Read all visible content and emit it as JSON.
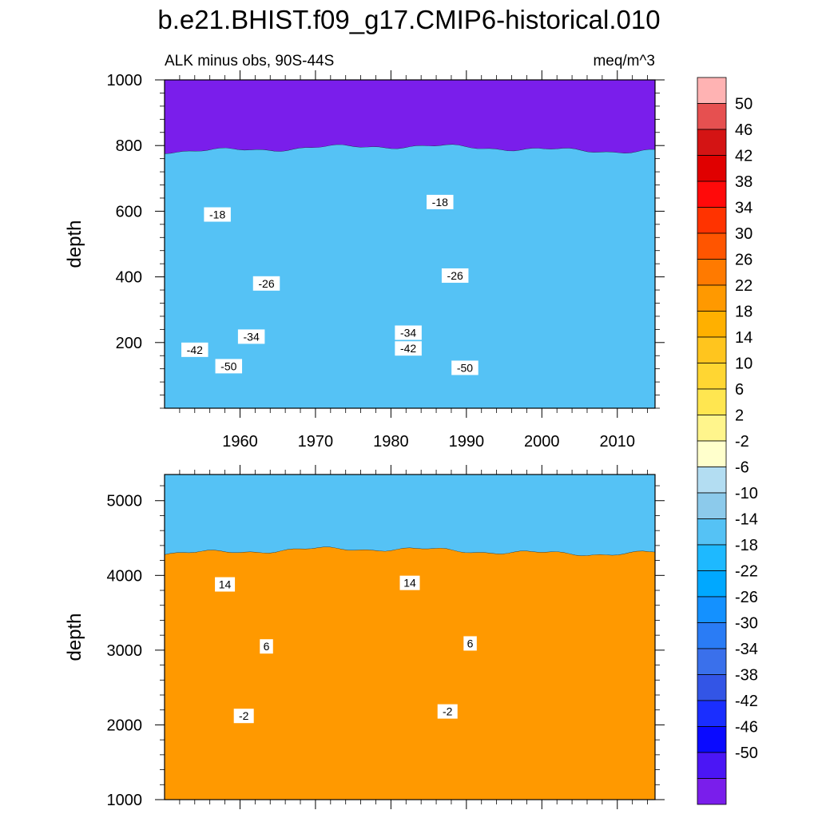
{
  "chart_data": {
    "type": "heatmap",
    "title": "b.e21.BHIST.f09_g17.CMIP6-historical.010",
    "subtitle_left": "ALK minus obs, 90S-44S",
    "subtitle_right": "meq/m^3",
    "colorbar": {
      "labels": [
        "50",
        "46",
        "42",
        "38",
        "34",
        "30",
        "26",
        "22",
        "18",
        "14",
        "10",
        "6",
        "2",
        "-2",
        "-6",
        "-10",
        "-14",
        "-18",
        "-22",
        "-26",
        "-30",
        "-34",
        "-38",
        "-42",
        "-46",
        "-50"
      ],
      "colors": [
        "#FFB3B3",
        "#E65050",
        "#D41414",
        "#E00000",
        "#FF0A0A",
        "#FF3300",
        "#FF5500",
        "#FF7A00",
        "#FF9900",
        "#FFB000",
        "#FFC51E",
        "#FFD632",
        "#FFE650",
        "#FFF58C",
        "#FFFFCC",
        "#B3DDF2",
        "#8CCAEB",
        "#55C2F5",
        "#1EB9FF",
        "#00A8FF",
        "#1491FF",
        "#2A7CF5",
        "#3A70EB",
        "#3355E6",
        "#1A2EFF",
        "#0A0AFF",
        "#4B16F5",
        "#7A1EEB"
      ]
    },
    "top_panel": {
      "ylabel": "depth",
      "ylim": [
        1000,
        0
      ],
      "yticks": [
        200,
        400,
        600,
        800,
        1000
      ],
      "xlim": [
        1950,
        2015
      ],
      "xticks": [
        1960,
        1970,
        1980,
        1990,
        2000,
        2010
      ],
      "bands": [
        {
          "top": 0,
          "bottom": 110,
          "color": "#7A1EEB"
        },
        {
          "top": 110,
          "bottom": 140,
          "color": "#4B16F5"
        },
        {
          "top": 140,
          "bottom": 175,
          "color": "#0A0AFF"
        },
        {
          "top": 175,
          "bottom": 215,
          "color": "#1A2EFF"
        },
        {
          "top": 215,
          "bottom": 255,
          "color": "#3355E6"
        },
        {
          "top": 255,
          "bottom": 315,
          "color": "#3A70EB"
        },
        {
          "top": 315,
          "bottom": 395,
          "color": "#2A7CF5"
        },
        {
          "top": 395,
          "bottom": 490,
          "color": "#1491FF"
        },
        {
          "top": 490,
          "bottom": 600,
          "color": "#00A8FF"
        },
        {
          "top": 600,
          "bottom": 790,
          "color": "#1EB9FF"
        },
        {
          "top": 790,
          "bottom": 1000,
          "color": "#55C2F5"
        }
      ],
      "contour_labels": [
        {
          "text": "-50",
          "year": 1958.5,
          "depth": 128
        },
        {
          "text": "-50",
          "year": 1989.8,
          "depth": 123
        },
        {
          "text": "-42",
          "year": 1954.0,
          "depth": 178
        },
        {
          "text": "-42",
          "year": 1982.3,
          "depth": 182
        },
        {
          "text": "-34",
          "year": 1961.5,
          "depth": 218
        },
        {
          "text": "-34",
          "year": 1982.3,
          "depth": 230
        },
        {
          "text": "-26",
          "year": 1963.5,
          "depth": 380
        },
        {
          "text": "-26",
          "year": 1988.5,
          "depth": 404
        },
        {
          "text": "-18",
          "year": 1957.0,
          "depth": 590
        },
        {
          "text": "-18",
          "year": 1986.5,
          "depth": 628
        }
      ]
    },
    "bottom_panel": {
      "ylabel": "depth",
      "ylim": [
        5350,
        1000
      ],
      "yticks": [
        1000,
        2000,
        3000,
        4000,
        5000
      ],
      "xlim": [
        1950,
        2015
      ],
      "xticks": [
        1960,
        1970,
        1980,
        1990,
        2000,
        2010
      ],
      "bands": [
        {
          "top": 1000,
          "bottom": 1080,
          "color": "#55C2F5"
        },
        {
          "top": 1080,
          "bottom": 1680,
          "color": "#8CCAEB"
        },
        {
          "top": 1680,
          "bottom": 2150,
          "color": "#B3DDF2"
        },
        {
          "top": 2150,
          "bottom": 2630,
          "color": "#FFFFCC"
        },
        {
          "top": 2630,
          "bottom": 3050,
          "color": "#FFF58C"
        },
        {
          "top": 3050,
          "bottom": 3450,
          "color": "#FFE650"
        },
        {
          "top": 3450,
          "bottom": 3870,
          "color": "#FFD632"
        },
        {
          "top": 3870,
          "bottom": 4320,
          "color": "#FFB000"
        },
        {
          "top": 4320,
          "bottom": 5350,
          "color": "#FF9900"
        }
      ],
      "contour_labels": [
        {
          "text": "-2",
          "year": 1960.5,
          "depth": 2120
        },
        {
          "text": "-2",
          "year": 1987.5,
          "depth": 2180
        },
        {
          "text": "6",
          "year": 1963.5,
          "depth": 3050
        },
        {
          "text": "6",
          "year": 1990.5,
          "depth": 3090
        },
        {
          "text": "14",
          "year": 1958.0,
          "depth": 3880
        },
        {
          "text": "14",
          "year": 1982.5,
          "depth": 3900
        }
      ]
    }
  }
}
